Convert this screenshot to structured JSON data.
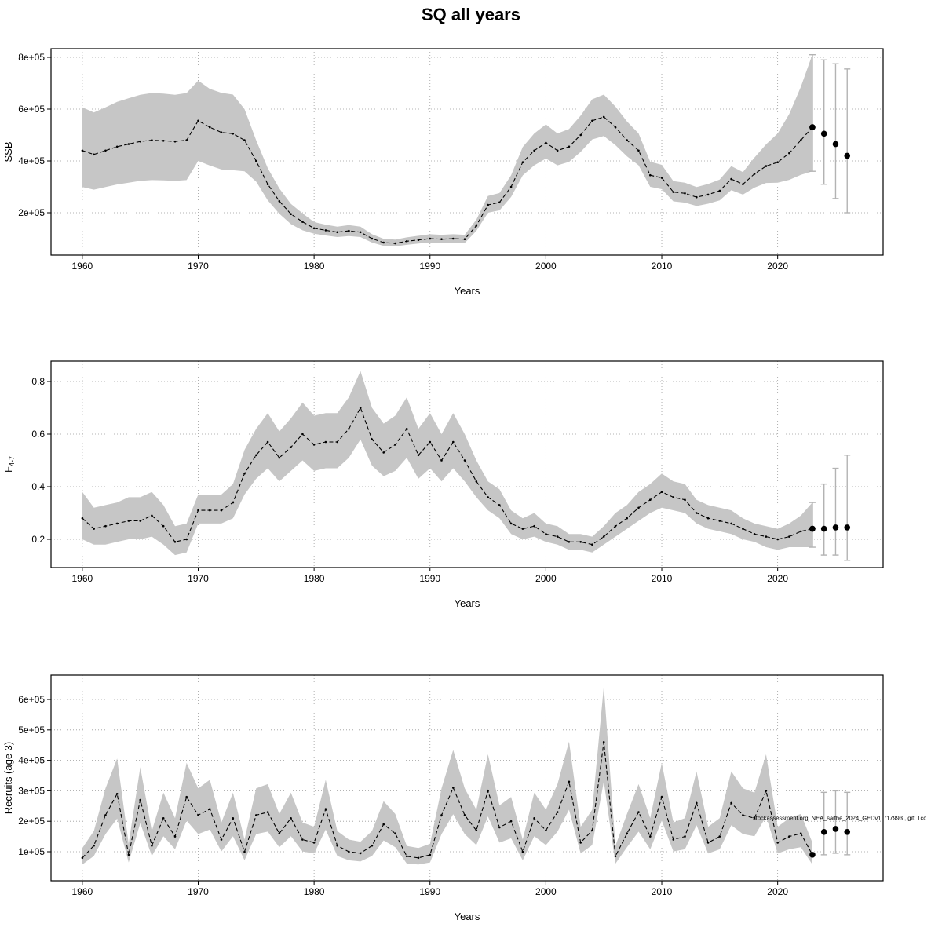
{
  "title": "SQ all years",
  "years": [
    1960,
    1961,
    1962,
    1963,
    1964,
    1965,
    1966,
    1967,
    1968,
    1969,
    1970,
    1971,
    1972,
    1973,
    1974,
    1975,
    1976,
    1977,
    1978,
    1979,
    1980,
    1981,
    1982,
    1983,
    1984,
    1985,
    1986,
    1987,
    1988,
    1989,
    1990,
    1991,
    1992,
    1993,
    1994,
    1995,
    1996,
    1997,
    1998,
    1999,
    2000,
    2001,
    2002,
    2003,
    2004,
    2005,
    2006,
    2007,
    2008,
    2009,
    2010,
    2011,
    2012,
    2013,
    2014,
    2015,
    2016,
    2017,
    2018,
    2019,
    2020,
    2021,
    2022,
    2023
  ],
  "chart_data": [
    {
      "type": "line",
      "panel": "ssb",
      "ylabel": "SSB",
      "xlabel": "Years",
      "xticks": [
        1960,
        1970,
        1980,
        1990,
        2000,
        2010,
        2020
      ],
      "yticks": {
        "values": [
          200000,
          400000,
          600000,
          800000
        ],
        "labels": [
          "2e+05",
          "4e+05",
          "6e+05",
          "8e+05"
        ]
      },
      "xlim": [
        1957.3,
        2029.1
      ],
      "ylim": [
        36400,
        833300
      ],
      "grid": true,
      "series": [
        {
          "name": "SSB estimate",
          "values": [
            440000,
            425000,
            440000,
            455000,
            465000,
            475000,
            480000,
            478000,
            475000,
            480000,
            555000,
            530000,
            510000,
            505000,
            480000,
            400000,
            310000,
            245000,
            195000,
            165000,
            140000,
            132000,
            125000,
            130000,
            125000,
            100000,
            85000,
            82000,
            90000,
            95000,
            100000,
            98000,
            100000,
            98000,
            150000,
            230000,
            240000,
            300000,
            395000,
            440000,
            470000,
            440000,
            455000,
            500000,
            555000,
            570000,
            530000,
            480000,
            440000,
            345000,
            335000,
            280000,
            275000,
            260000,
            270000,
            285000,
            330000,
            310000,
            350000,
            380000,
            395000,
            430000,
            480000,
            530000
          ]
        }
      ],
      "band": {
        "lo": [
          299000,
          289000,
          299000,
          309000,
          316000,
          323000,
          326000,
          325000,
          323000,
          326000,
          400000,
          382000,
          367000,
          364000,
          360000,
          320000,
          248000,
          196000,
          156000,
          132000,
          119000,
          112000,
          106000,
          110000,
          106000,
          85000,
          72000,
          70000,
          76000,
          81000,
          85000,
          83000,
          85000,
          83000,
          130000,
          200000,
          209000,
          261000,
          344000,
          383000,
          409000,
          383000,
          396000,
          435000,
          483000,
          496000,
          461000,
          418000,
          383000,
          300000,
          291000,
          244000,
          239000,
          226000,
          235000,
          248000,
          287000,
          270000,
          297000,
          315000,
          316000,
          327000,
          346000,
          360000
        ],
        "hi": [
          607000,
          587000,
          607000,
          628000,
          642000,
          655000,
          662000,
          660000,
          655000,
          662000,
          710000,
          678000,
          663000,
          656000,
          600000,
          480000,
          372000,
          294000,
          234000,
          198000,
          164000,
          154000,
          146000,
          152000,
          146000,
          117000,
          99000,
          96000,
          105000,
          111000,
          117000,
          115000,
          117000,
          115000,
          173000,
          265000,
          276000,
          345000,
          454000,
          506000,
          541000,
          506000,
          523000,
          575000,
          638000,
          656000,
          610000,
          552000,
          506000,
          397000,
          385000,
          322000,
          316000,
          299000,
          311000,
          328000,
          380000,
          357000,
          413000,
          464000,
          506000,
          581000,
          686000,
          811000
        ]
      },
      "forecast": {
        "years": [
          2023,
          2024,
          2025,
          2026
        ],
        "values": [
          530000,
          505000,
          465000,
          420000
        ],
        "lo": [
          360000,
          310000,
          255000,
          200000
        ],
        "hi": [
          810000,
          790000,
          775000,
          755000
        ]
      }
    },
    {
      "type": "line",
      "panel": "f4-7",
      "ylabel": "F",
      "ylabel_sub": "4-7",
      "xlabel": "Years",
      "xticks": [
        1960,
        1970,
        1980,
        1990,
        2000,
        2010,
        2020
      ],
      "yticks": {
        "values": [
          0.2,
          0.4,
          0.6,
          0.8
        ],
        "labels": [
          "0.2",
          "0.4",
          "0.6",
          "0.8"
        ]
      },
      "xlim": [
        1957.3,
        2029.1
      ],
      "ylim": [
        0.0925,
        0.8776
      ],
      "grid": true,
      "series": [
        {
          "name": "F estimate",
          "values": [
            0.28,
            0.24,
            0.25,
            0.26,
            0.27,
            0.27,
            0.29,
            0.25,
            0.19,
            0.2,
            0.31,
            0.31,
            0.31,
            0.34,
            0.45,
            0.52,
            0.57,
            0.51,
            0.55,
            0.6,
            0.56,
            0.57,
            0.57,
            0.62,
            0.7,
            0.58,
            0.53,
            0.56,
            0.62,
            0.52,
            0.57,
            0.5,
            0.57,
            0.5,
            0.42,
            0.36,
            0.33,
            0.26,
            0.24,
            0.25,
            0.22,
            0.21,
            0.19,
            0.19,
            0.18,
            0.21,
            0.25,
            0.28,
            0.32,
            0.35,
            0.38,
            0.36,
            0.35,
            0.3,
            0.28,
            0.27,
            0.26,
            0.24,
            0.22,
            0.21,
            0.2,
            0.21,
            0.23,
            0.24
          ]
        }
      ],
      "band": {
        "lo": [
          0.2,
          0.18,
          0.18,
          0.19,
          0.2,
          0.2,
          0.21,
          0.18,
          0.14,
          0.15,
          0.26,
          0.26,
          0.26,
          0.28,
          0.37,
          0.43,
          0.47,
          0.42,
          0.46,
          0.5,
          0.46,
          0.47,
          0.47,
          0.51,
          0.58,
          0.48,
          0.44,
          0.46,
          0.51,
          0.43,
          0.47,
          0.42,
          0.47,
          0.42,
          0.36,
          0.31,
          0.28,
          0.22,
          0.2,
          0.21,
          0.19,
          0.18,
          0.16,
          0.16,
          0.15,
          0.18,
          0.21,
          0.24,
          0.27,
          0.3,
          0.32,
          0.31,
          0.3,
          0.26,
          0.24,
          0.23,
          0.22,
          0.2,
          0.19,
          0.17,
          0.16,
          0.17,
          0.17,
          0.17
        ],
        "hi": [
          0.38,
          0.32,
          0.33,
          0.34,
          0.36,
          0.36,
          0.38,
          0.33,
          0.25,
          0.26,
          0.37,
          0.37,
          0.37,
          0.41,
          0.54,
          0.62,
          0.68,
          0.61,
          0.66,
          0.72,
          0.67,
          0.68,
          0.68,
          0.74,
          0.84,
          0.7,
          0.64,
          0.67,
          0.74,
          0.62,
          0.68,
          0.6,
          0.68,
          0.6,
          0.5,
          0.42,
          0.39,
          0.31,
          0.28,
          0.3,
          0.26,
          0.25,
          0.22,
          0.22,
          0.21,
          0.25,
          0.3,
          0.33,
          0.38,
          0.41,
          0.45,
          0.42,
          0.41,
          0.35,
          0.33,
          0.32,
          0.31,
          0.28,
          0.26,
          0.25,
          0.24,
          0.26,
          0.29,
          0.34
        ]
      },
      "forecast": {
        "years": [
          2023,
          2024,
          2025,
          2026
        ],
        "values": [
          0.24,
          0.24,
          0.245,
          0.245
        ],
        "lo": [
          0.17,
          0.14,
          0.14,
          0.12
        ],
        "hi": [
          0.34,
          0.41,
          0.47,
          0.52
        ]
      }
    },
    {
      "type": "line",
      "panel": "recruits",
      "ylabel": "Recruits (age 3)",
      "xlabel": "Years",
      "xticks": [
        1960,
        1970,
        1980,
        1990,
        2000,
        2010,
        2020
      ],
      "yticks": {
        "values": [
          100000,
          200000,
          300000,
          400000,
          500000,
          600000
        ],
        "labels": [
          "1e+05",
          "2e+05",
          "3e+05",
          "4e+05",
          "5e+05",
          "6e+05"
        ]
      },
      "xlim": [
        1957.3,
        2029.1
      ],
      "ylim": [
        4600,
        680000
      ],
      "grid": true,
      "series": [
        {
          "name": "Recruitment estimate",
          "values": [
            80000,
            120000,
            220000,
            290000,
            90000,
            270000,
            120000,
            210000,
            150000,
            280000,
            220000,
            240000,
            140000,
            210000,
            100000,
            220000,
            230000,
            160000,
            210000,
            140000,
            130000,
            240000,
            120000,
            100000,
            95000,
            120000,
            190000,
            160000,
            85000,
            80000,
            90000,
            220000,
            310000,
            220000,
            170000,
            300000,
            180000,
            200000,
            100000,
            210000,
            170000,
            230000,
            330000,
            130000,
            170000,
            460000,
            85000,
            160000,
            230000,
            150000,
            280000,
            140000,
            150000,
            260000,
            130000,
            150000,
            260000,
            220000,
            210000,
            300000,
            130000,
            150000,
            160000,
            90000
          ]
        }
      ],
      "band": {
        "lo": [
          58000,
          86000,
          158000,
          209000,
          65000,
          194000,
          86000,
          151000,
          108000,
          202000,
          158000,
          173000,
          101000,
          151000,
          72000,
          158000,
          166000,
          115000,
          151000,
          101000,
          94000,
          173000,
          86000,
          72000,
          68000,
          86000,
          137000,
          115000,
          61000,
          58000,
          65000,
          158000,
          223000,
          158000,
          122000,
          216000,
          130000,
          144000,
          72000,
          151000,
          122000,
          166000,
          238000,
          94000,
          122000,
          331000,
          61000,
          115000,
          166000,
          108000,
          202000,
          101000,
          108000,
          187000,
          94000,
          108000,
          187000,
          158000,
          151000,
          216000,
          94000,
          108000,
          115000,
          58000
        ],
        "hi": [
          112000,
          168000,
          308000,
          406000,
          126000,
          378000,
          168000,
          294000,
          210000,
          392000,
          308000,
          336000,
          196000,
          294000,
          140000,
          308000,
          322000,
          224000,
          294000,
          196000,
          182000,
          336000,
          168000,
          140000,
          133000,
          168000,
          266000,
          224000,
          119000,
          112000,
          126000,
          308000,
          434000,
          308000,
          238000,
          420000,
          252000,
          280000,
          140000,
          294000,
          238000,
          322000,
          462000,
          182000,
          238000,
          644000,
          119000,
          224000,
          322000,
          210000,
          392000,
          196000,
          210000,
          364000,
          182000,
          210000,
          364000,
          308000,
          294000,
          420000,
          182000,
          210000,
          224000,
          130000
        ]
      },
      "forecast": {
        "years": [
          2024,
          2025,
          2026
        ],
        "values": [
          165000,
          175000,
          165000
        ],
        "lo": [
          90000,
          95000,
          90000
        ],
        "hi": [
          295000,
          300000,
          295000
        ]
      },
      "annotation": {
        "text": "stockassessment.org, NEA_saithe_2024_GEDv1, r17993 , git: 1cc",
        "y_value": 205000
      }
    }
  ]
}
